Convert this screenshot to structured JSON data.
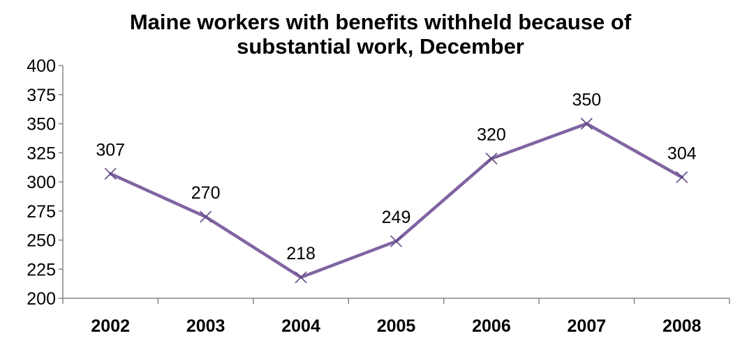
{
  "chart_data": {
    "type": "line",
    "title": "Maine workers with benefits withheld because of substantial work, December",
    "title_lines": [
      "Maine workers with benefits withheld because of",
      "substantial work, December"
    ],
    "categories": [
      "2002",
      "2003",
      "2004",
      "2005",
      "2006",
      "2007",
      "2008"
    ],
    "series": [
      {
        "values": [
          307,
          270,
          218,
          249,
          320,
          350,
          304
        ]
      }
    ],
    "ylim": [
      200,
      400
    ],
    "yticks": [
      200,
      225,
      250,
      275,
      300,
      325,
      350,
      375,
      400
    ],
    "xlabel": "",
    "ylabel": "",
    "grid": false,
    "marker": "x",
    "line_color": "#8064A2",
    "marker_color": "#5F4A87"
  }
}
